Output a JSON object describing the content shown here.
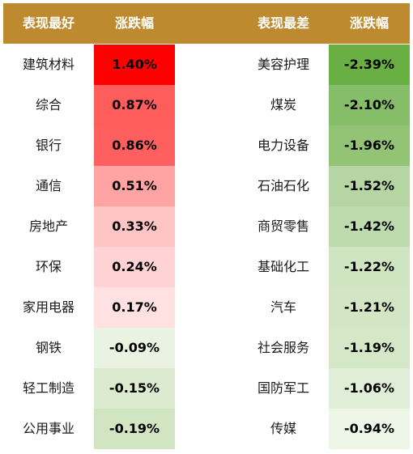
{
  "header": {
    "best_label": "表现最好",
    "best_change_label": "涨跌幅",
    "worst_label": "表现最差",
    "worst_change_label": "涨跌幅",
    "bg_color": "#BE8A2F"
  },
  "best": [
    {
      "name": "建筑材料",
      "value": "1.40%",
      "color": "#FF0000"
    },
    {
      "name": "综合",
      "value": "0.87%",
      "color": "#FF5C5C"
    },
    {
      "name": "银行",
      "value": "0.86%",
      "color": "#FF5F5F"
    },
    {
      "name": "通信",
      "value": "0.51%",
      "color": "#FFA3A3"
    },
    {
      "name": "房地产",
      "value": "0.33%",
      "color": "#FFC4C4"
    },
    {
      "name": "环保",
      "value": "0.24%",
      "color": "#FFD3D3"
    },
    {
      "name": "家用电器",
      "value": "0.17%",
      "color": "#FFE1E1"
    },
    {
      "name": "钢铁",
      "value": "-0.09%",
      "color": "#EAF2E1"
    },
    {
      "name": "轻工制造",
      "value": "-0.15%",
      "color": "#DCEBD0"
    },
    {
      "name": "公用事业",
      "value": "-0.19%",
      "color": "#D1E5C3"
    }
  ],
  "worst": [
    {
      "name": "美容护理",
      "value": "-2.39%",
      "color": "#6AAF43"
    },
    {
      "name": "煤炭",
      "value": "-2.10%",
      "color": "#86BD68"
    },
    {
      "name": "电力设备",
      "value": "-1.96%",
      "color": "#93C476"
    },
    {
      "name": "石油石化",
      "value": "-1.52%",
      "color": "#B5D6A3"
    },
    {
      "name": "商贸零售",
      "value": "-1.42%",
      "color": "#BEDBAE"
    },
    {
      "name": "基础化工",
      "value": "-1.22%",
      "color": "#CFE5C1"
    },
    {
      "name": "汽车",
      "value": "-1.21%",
      "color": "#D2E6C5"
    },
    {
      "name": "社会服务",
      "value": "-1.19%",
      "color": "#D4E8C8"
    },
    {
      "name": "国防军工",
      "value": "-1.06%",
      "color": "#E0EED7"
    },
    {
      "name": "传媒",
      "value": "-0.94%",
      "color": "#EEF6E8"
    }
  ]
}
